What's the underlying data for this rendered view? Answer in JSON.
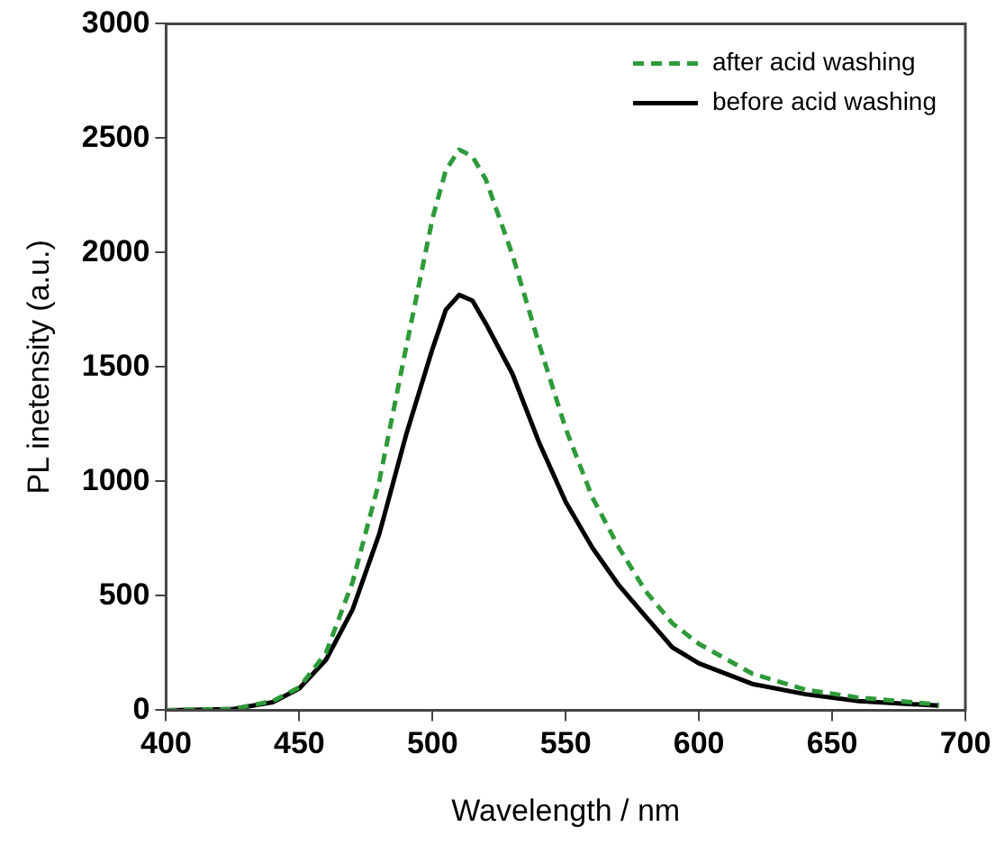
{
  "chart_data": {
    "type": "line",
    "xlabel": "Wavelength / nm",
    "ylabel": "PL inetensity (a.u.)",
    "xlim": [
      400,
      700
    ],
    "xticks": [
      400,
      450,
      500,
      550,
      600,
      650,
      700
    ],
    "ylim": [
      0,
      3000
    ],
    "yticks": [
      0,
      500,
      1000,
      1500,
      2000,
      2500,
      3000
    ],
    "grid": false,
    "legend": "top right",
    "marker": "none",
    "series": [
      {
        "name": "after acid washing",
        "color": "#2e9a3a",
        "line_style": "dashed",
        "x": [
          400,
          425,
          440,
          450,
          460,
          470,
          480,
          490,
          500,
          505,
          510,
          515,
          520,
          530,
          540,
          550,
          560,
          570,
          580,
          590,
          600,
          620,
          640,
          660,
          690
        ],
        "values": [
          0,
          5,
          40,
          100,
          250,
          560,
          1000,
          1580,
          2150,
          2360,
          2450,
          2420,
          2320,
          1990,
          1600,
          1230,
          930,
          710,
          520,
          380,
          290,
          160,
          90,
          55,
          25
        ]
      },
      {
        "name": "before acid washing",
        "color": "#000000",
        "line_style": "solid",
        "x": [
          400,
          425,
          440,
          450,
          460,
          470,
          480,
          490,
          500,
          505,
          510,
          515,
          520,
          530,
          540,
          550,
          560,
          570,
          580,
          590,
          600,
          620,
          640,
          660,
          690
        ],
        "values": [
          0,
          5,
          35,
          95,
          220,
          440,
          770,
          1200,
          1580,
          1750,
          1815,
          1790,
          1690,
          1470,
          1170,
          910,
          710,
          545,
          410,
          275,
          205,
          115,
          70,
          40,
          20
        ]
      }
    ]
  }
}
